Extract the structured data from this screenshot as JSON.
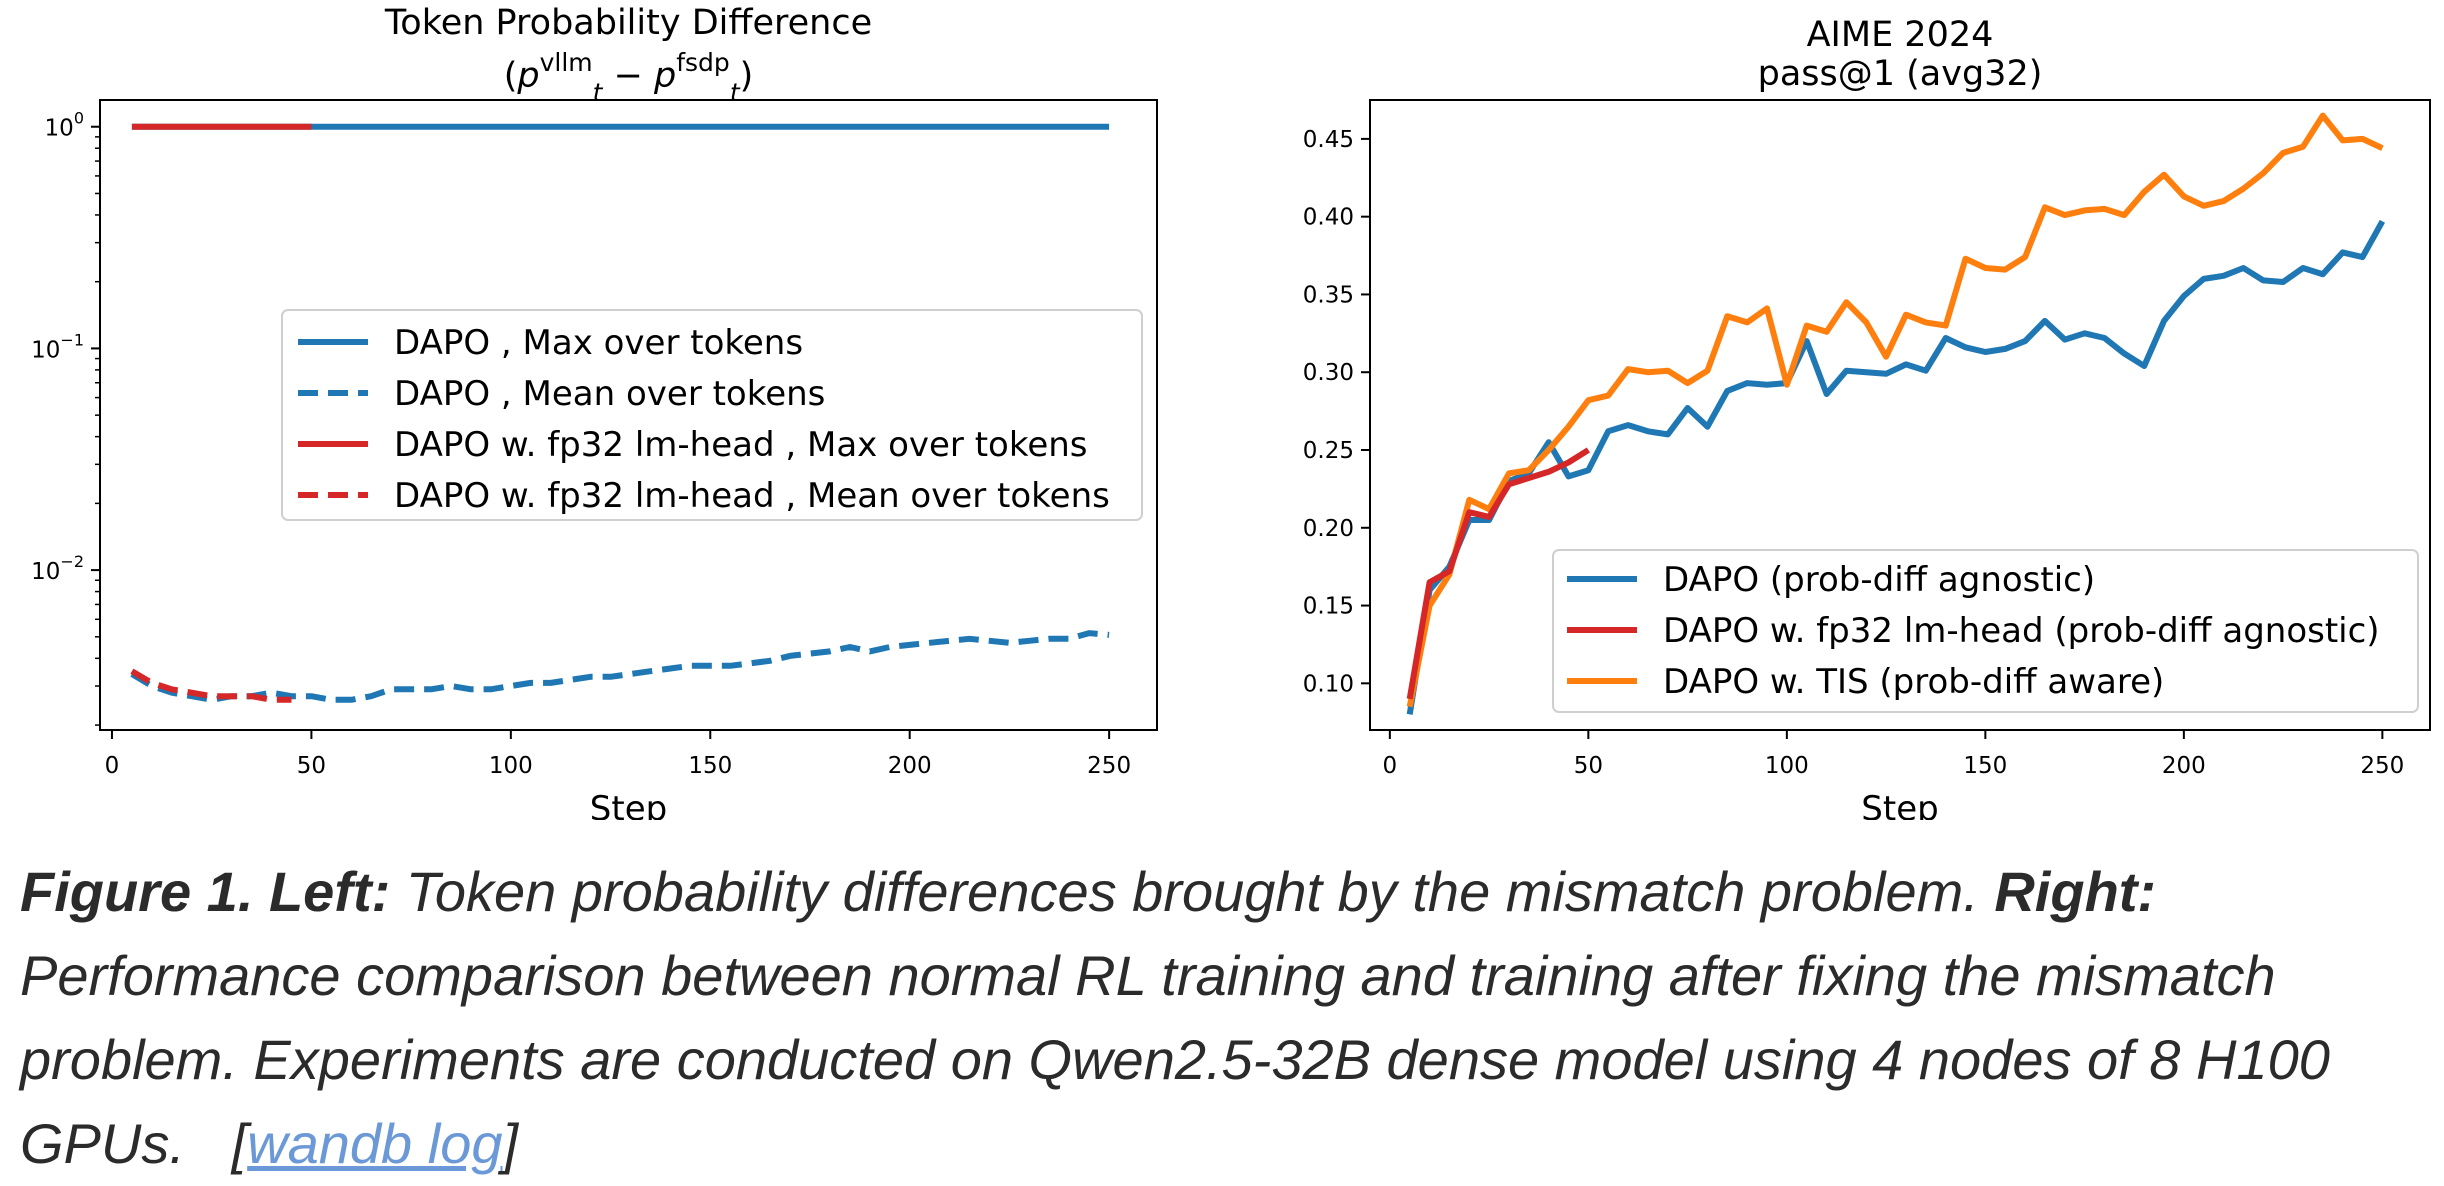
{
  "chart_data": [
    {
      "type": "line",
      "title": "Token Probability Difference",
      "subtitle_base": "p",
      "subtitle_sub": "t",
      "subtitle_sup1": "vllm",
      "subtitle_sup2": "fsdp",
      "xlabel": "Step",
      "ylabel": "",
      "yscale": "log",
      "xlim": [
        -3,
        262
      ],
      "ylim": [
        0.0019,
        1.32
      ],
      "xticks": [
        0,
        50,
        100,
        150,
        200,
        250
      ],
      "xtick_labels": [
        "0",
        "50",
        "100",
        "150",
        "200",
        "250"
      ],
      "yticks": [
        1,
        0.1,
        0.01
      ],
      "ytick_labels": [
        {
          "base": "10",
          "exp": "0"
        },
        {
          "base": "10",
          "exp": "−1"
        },
        {
          "base": "10",
          "exp": "−2"
        }
      ],
      "legend_position": "center-right",
      "series": [
        {
          "name": "DAPO , Max over tokens",
          "color": "#1f77b4",
          "dash": "solid",
          "x": [
            5,
            250
          ],
          "y": [
            1.0,
            1.0
          ]
        },
        {
          "name": "DAPO , Mean over tokens",
          "color": "#1f77b4",
          "dash": "dashed",
          "x": [
            5,
            10,
            15,
            20,
            25,
            30,
            35,
            40,
            45,
            50,
            55,
            60,
            65,
            70,
            75,
            80,
            85,
            90,
            95,
            100,
            105,
            110,
            115,
            120,
            125,
            130,
            135,
            140,
            145,
            150,
            155,
            160,
            165,
            170,
            175,
            180,
            185,
            190,
            195,
            200,
            205,
            210,
            215,
            220,
            225,
            230,
            235,
            240,
            245,
            250
          ],
          "y": [
            0.0034,
            0.003,
            0.0028,
            0.0027,
            0.0026,
            0.0027,
            0.0027,
            0.0028,
            0.0027,
            0.0027,
            0.0026,
            0.0026,
            0.0027,
            0.0029,
            0.0029,
            0.0029,
            0.003,
            0.0029,
            0.0029,
            0.003,
            0.0031,
            0.0031,
            0.0032,
            0.0033,
            0.0033,
            0.0034,
            0.0035,
            0.0036,
            0.0037,
            0.0037,
            0.0037,
            0.0038,
            0.0039,
            0.0041,
            0.0042,
            0.0043,
            0.0045,
            0.0043,
            0.0045,
            0.0046,
            0.0047,
            0.0048,
            0.0049,
            0.0048,
            0.0047,
            0.0048,
            0.0049,
            0.0049,
            0.0052,
            0.0051
          ]
        },
        {
          "name": "DAPO w. fp32 lm-head , Max over tokens",
          "color": "#d62728",
          "dash": "solid",
          "x": [
            5,
            50
          ],
          "y": [
            1.0,
            1.0
          ]
        },
        {
          "name": "DAPO w. fp32 lm-head , Mean over tokens",
          "color": "#d62728",
          "dash": "dashed",
          "x": [
            5,
            10,
            15,
            20,
            25,
            30,
            35,
            40,
            45
          ],
          "y": [
            0.0035,
            0.0031,
            0.0029,
            0.0028,
            0.0027,
            0.0027,
            0.0027,
            0.0026,
            0.0026
          ]
        }
      ]
    },
    {
      "type": "line",
      "title": "AIME 2024",
      "subtitle": "pass@1 (avg32)",
      "xlabel": "Step",
      "ylabel": "",
      "xlim": [
        -5,
        262
      ],
      "ylim": [
        0.07,
        0.475
      ],
      "xticks": [
        0,
        50,
        100,
        150,
        200,
        250
      ],
      "xtick_labels": [
        "0",
        "50",
        "100",
        "150",
        "200",
        "250"
      ],
      "yticks": [
        0.1,
        0.15,
        0.2,
        0.25,
        0.3,
        0.35,
        0.4,
        0.45
      ],
      "ytick_labels": [
        "0.10",
        "0.15",
        "0.20",
        "0.25",
        "0.30",
        "0.35",
        "0.40",
        "0.45"
      ],
      "legend_position": "lower-right",
      "series": [
        {
          "name": "DAPO (prob-diff agnostic)",
          "color": "#1f77b4",
          "dash": "solid",
          "x": [
            5,
            10,
            15,
            20,
            25,
            30,
            35,
            40,
            45,
            50,
            55,
            60,
            65,
            70,
            75,
            80,
            85,
            90,
            95,
            100,
            105,
            110,
            115,
            120,
            125,
            130,
            135,
            140,
            145,
            150,
            155,
            160,
            165,
            170,
            175,
            180,
            185,
            190,
            195,
            200,
            205,
            210,
            215,
            220,
            225,
            230,
            235,
            240,
            245,
            250
          ],
          "y": [
            0.08,
            0.16,
            0.175,
            0.205,
            0.205,
            0.23,
            0.235,
            0.255,
            0.233,
            0.237,
            0.262,
            0.266,
            0.262,
            0.26,
            0.277,
            0.265,
            0.288,
            0.293,
            0.292,
            0.293,
            0.32,
            0.286,
            0.301,
            0.3,
            0.299,
            0.305,
            0.301,
            0.322,
            0.316,
            0.313,
            0.315,
            0.32,
            0.333,
            0.321,
            0.325,
            0.322,
            0.312,
            0.304,
            0.333,
            0.349,
            0.36,
            0.362,
            0.367,
            0.359,
            0.358,
            0.367,
            0.363,
            0.377,
            0.374,
            0.397
          ]
        },
        {
          "name": "DAPO w. fp32 lm-head (prob-diff agnostic)",
          "color": "#d62728",
          "dash": "solid",
          "x": [
            5,
            10,
            15,
            20,
            25,
            30,
            35,
            40,
            45,
            50
          ],
          "y": [
            0.09,
            0.165,
            0.172,
            0.21,
            0.207,
            0.228,
            0.232,
            0.236,
            0.242,
            0.25
          ]
        },
        {
          "name": "DAPO w. TIS (prob-diff aware)",
          "color": "#ff7f0e",
          "dash": "solid",
          "x": [
            5,
            10,
            15,
            20,
            25,
            30,
            35,
            40,
            45,
            50,
            55,
            60,
            65,
            70,
            75,
            80,
            85,
            90,
            95,
            100,
            105,
            110,
            115,
            120,
            125,
            130,
            135,
            140,
            145,
            150,
            155,
            160,
            165,
            170,
            175,
            180,
            185,
            190,
            195,
            200,
            205,
            210,
            215,
            220,
            225,
            230,
            235,
            240,
            245,
            250
          ],
          "y": [
            0.085,
            0.15,
            0.17,
            0.218,
            0.212,
            0.235,
            0.237,
            0.25,
            0.265,
            0.282,
            0.285,
            0.302,
            0.3,
            0.301,
            0.293,
            0.301,
            0.336,
            0.332,
            0.341,
            0.292,
            0.33,
            0.326,
            0.345,
            0.332,
            0.31,
            0.337,
            0.332,
            0.33,
            0.373,
            0.367,
            0.366,
            0.374,
            0.406,
            0.401,
            0.404,
            0.405,
            0.401,
            0.416,
            0.427,
            0.413,
            0.407,
            0.41,
            0.418,
            0.428,
            0.441,
            0.445,
            0.465,
            0.449,
            0.45,
            0.444
          ]
        }
      ]
    }
  ],
  "caption": {
    "lead": "Figure 1.",
    "left_label": "Left:",
    "left_text": "Token probability differences brought by the mismatch problem.",
    "right_label": "Right:",
    "right_text": "Performance comparison between normal RL training and training after fixing the mismatch problem. Experiments are conducted on Qwen2.5-32B dense model using 4 nodes of 8 H100 GPUs.",
    "link_open": "[",
    "link_text": "wandb log",
    "link_close": "]"
  }
}
